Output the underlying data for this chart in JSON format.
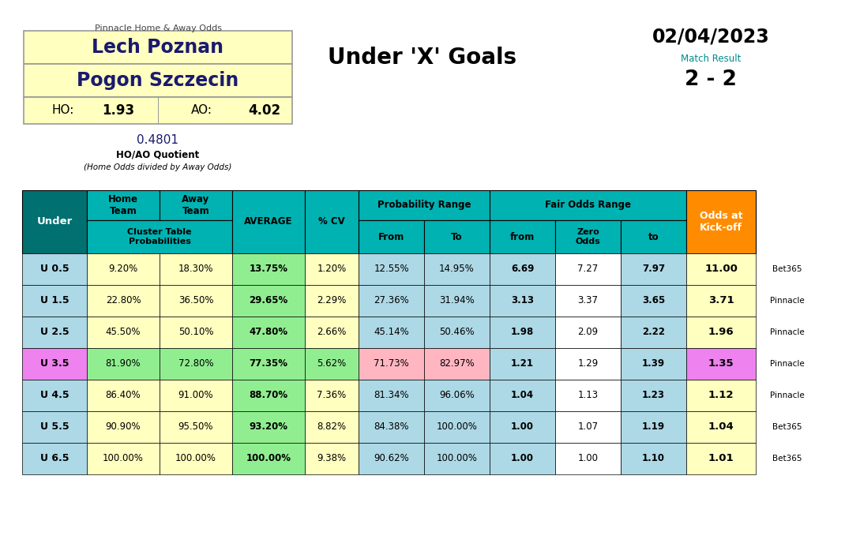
{
  "title_home": "Lech Poznan",
  "title_away": "Pogon Szczecin",
  "ho": "1.93",
  "ao": "4.02",
  "quotient": "0.4801",
  "quotient_label": "HO/AO Quotient",
  "quotient_note": "(Home Odds divided by Away Odds)",
  "pinnacle_label": "Pinnacle Home & Away Odds",
  "main_title": "Under 'X' Goals",
  "date": "02/04/2023",
  "match_result_label": "Match Result",
  "match_result": "2 - 2",
  "under_labels": [
    "U 0.5",
    "U 1.5",
    "U 2.5",
    "U 3.5",
    "U 4.5",
    "U 5.5",
    "U 6.5"
  ],
  "home_probs": [
    "9.20%",
    "22.80%",
    "45.50%",
    "81.90%",
    "86.40%",
    "90.90%",
    "100.00%"
  ],
  "away_probs": [
    "18.30%",
    "36.50%",
    "50.10%",
    "72.80%",
    "91.00%",
    "95.50%",
    "100.00%"
  ],
  "averages": [
    "13.75%",
    "29.65%",
    "47.80%",
    "77.35%",
    "88.70%",
    "93.20%",
    "100.00%"
  ],
  "cv": [
    "1.20%",
    "2.29%",
    "2.66%",
    "5.62%",
    "7.36%",
    "8.82%",
    "9.38%"
  ],
  "prob_from": [
    "12.55%",
    "27.36%",
    "45.14%",
    "71.73%",
    "81.34%",
    "84.38%",
    "90.62%"
  ],
  "prob_to": [
    "14.95%",
    "31.94%",
    "50.46%",
    "82.97%",
    "96.06%",
    "100.00%",
    "100.00%"
  ],
  "fair_from": [
    "6.69",
    "3.13",
    "1.98",
    "1.21",
    "1.04",
    "1.00",
    "1.00"
  ],
  "fair_zero": [
    "7.27",
    "3.37",
    "2.09",
    "1.29",
    "1.13",
    "1.07",
    "1.00"
  ],
  "fair_to": [
    "7.97",
    "3.65",
    "2.22",
    "1.39",
    "1.23",
    "1.19",
    "1.10"
  ],
  "kickoff_odds": [
    "11.00",
    "3.71",
    "1.96",
    "1.35",
    "1.12",
    "1.04",
    "1.01"
  ],
  "kickoff_bookmakers": [
    "Bet365",
    "Pinnacle",
    "Pinnacle",
    "Pinnacle",
    "Pinnacle",
    "Bet365",
    "Bet365"
  ],
  "teal_header": "#00B2B2",
  "teal_dark": "#007070",
  "orange": "#FF8C00",
  "light_yellow": "#FFFFC0",
  "light_blue": "#ADD8E6",
  "light_green": "#90EE90",
  "pink": "#FFB6C1",
  "violet": "#EE82EE",
  "white": "#FFFFFF",
  "dark_navy": "#1a1a6e",
  "teal_text": "#008B8B",
  "orange_text": "#FF8C00"
}
